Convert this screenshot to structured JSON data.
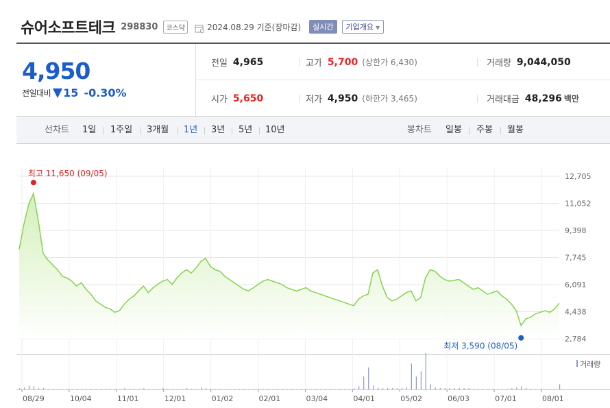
{
  "header": {
    "name": "슈어소프트테크",
    "code": "298830",
    "market": "코스닥",
    "date_text": "2024.08.29  기준(장마감)",
    "realtime_label": "실시간",
    "company_label": "기업개요"
  },
  "price": {
    "current": "4,950",
    "vs_label": "전일대비",
    "change": "15",
    "change_pct": "-0.30%"
  },
  "stats": {
    "prev_label": "전일",
    "prev_value": "4,965",
    "high_label": "고가",
    "high_value": "5,700",
    "upper_limit": "(상한가 6,430)",
    "volume_label": "거래량",
    "volume_value": "9,044,050",
    "open_label": "시가",
    "open_value": "5,650",
    "low_label": "저가",
    "low_value": "4,950",
    "lower_limit": "(하한가 3,465)",
    "amount_label": "거래대금",
    "amount_value": "48,296",
    "amount_unit": "백만"
  },
  "tabs": {
    "line_label": "선차트",
    "line_periods": [
      "1일",
      "1주일",
      "3개월",
      "1년",
      "3년",
      "5년",
      "10년"
    ],
    "active_period": "1년",
    "candle_label": "봉차트",
    "candle_periods": [
      "일봉",
      "주봉",
      "월봉"
    ]
  },
  "chart_data": {
    "type": "area",
    "title": "",
    "max_label": "최고 11,650 (09/05)",
    "min_label": "최저 3,590 (08/05)",
    "volume_label": "거래량",
    "y_ticks": [
      "12,705",
      "11,052",
      "9,398",
      "7,745",
      "6,091",
      "4,438",
      "2,784"
    ],
    "ylim": [
      2784,
      12705
    ],
    "x_ticks": [
      "08/29",
      "10/04",
      "11/01",
      "12/01",
      "01/02",
      "02/01",
      "03/04",
      "04/01",
      "05/02",
      "06/03",
      "07/01",
      "08/01"
    ],
    "colors": {
      "line": "#86d24f",
      "fill_top": "#cfeeb3",
      "max": "#e22222",
      "min": "#1c5ec9",
      "volume": "#8898c8"
    },
    "series": [
      {
        "values": [
          8250,
          9800,
          11000,
          11650,
          10000,
          8000,
          7600,
          7300,
          7000,
          6600,
          6500,
          6300,
          6000,
          6200,
          5800,
          5500,
          5100,
          4900,
          4700,
          4600,
          4400,
          4500,
          4900,
          5200,
          5400,
          5700,
          6000,
          5600,
          5900,
          6100,
          6300,
          6400,
          6100,
          6500,
          6800,
          7000,
          6800,
          7100,
          7500,
          7700,
          7200,
          7000,
          6900,
          6600,
          6400,
          6200,
          6000,
          5800,
          5700,
          5900,
          6100,
          6300,
          6400,
          6300,
          6200,
          6100,
          5900,
          5800,
          5700,
          5800,
          5900,
          5700,
          5600,
          5500,
          5400,
          5300,
          5200,
          5100,
          5000,
          4900,
          4800,
          5200,
          5400,
          5500,
          6800,
          7000,
          6000,
          5300,
          5100,
          5200,
          5400,
          5600,
          5700,
          5100,
          5300,
          6500,
          7000,
          6900,
          6600,
          6400,
          6300,
          6350,
          6400,
          6200,
          6000,
          5800,
          5900,
          5700,
          5500,
          5600,
          5700,
          5400,
          5200,
          4900,
          4500,
          3590,
          4000,
          4100,
          4300,
          4400,
          4500,
          4400,
          4600,
          4950
        ]
      }
    ],
    "volume": [
      2,
      3,
      6,
      5,
      2,
      2,
      1,
      1,
      1,
      1,
      1,
      1,
      1,
      1,
      1,
      1,
      1,
      1,
      1,
      1,
      1,
      1,
      2,
      1,
      1,
      1,
      2,
      1,
      1,
      1,
      2,
      1,
      1,
      1,
      1,
      2,
      1,
      1,
      3,
      2,
      1,
      1,
      1,
      1,
      1,
      1,
      1,
      1,
      1,
      1,
      1,
      1,
      1,
      1,
      1,
      1,
      1,
      1,
      1,
      1,
      1,
      1,
      1,
      1,
      1,
      1,
      1,
      1,
      1,
      1,
      2,
      5,
      20,
      34,
      6,
      3,
      2,
      2,
      2,
      2,
      2,
      3,
      40,
      20,
      28,
      56,
      8,
      3,
      2,
      2,
      2,
      2,
      2,
      2,
      2,
      1,
      1,
      1,
      1,
      1,
      1,
      1,
      1,
      2,
      3,
      5,
      2,
      1,
      1,
      1,
      1,
      1,
      1,
      8
    ]
  }
}
